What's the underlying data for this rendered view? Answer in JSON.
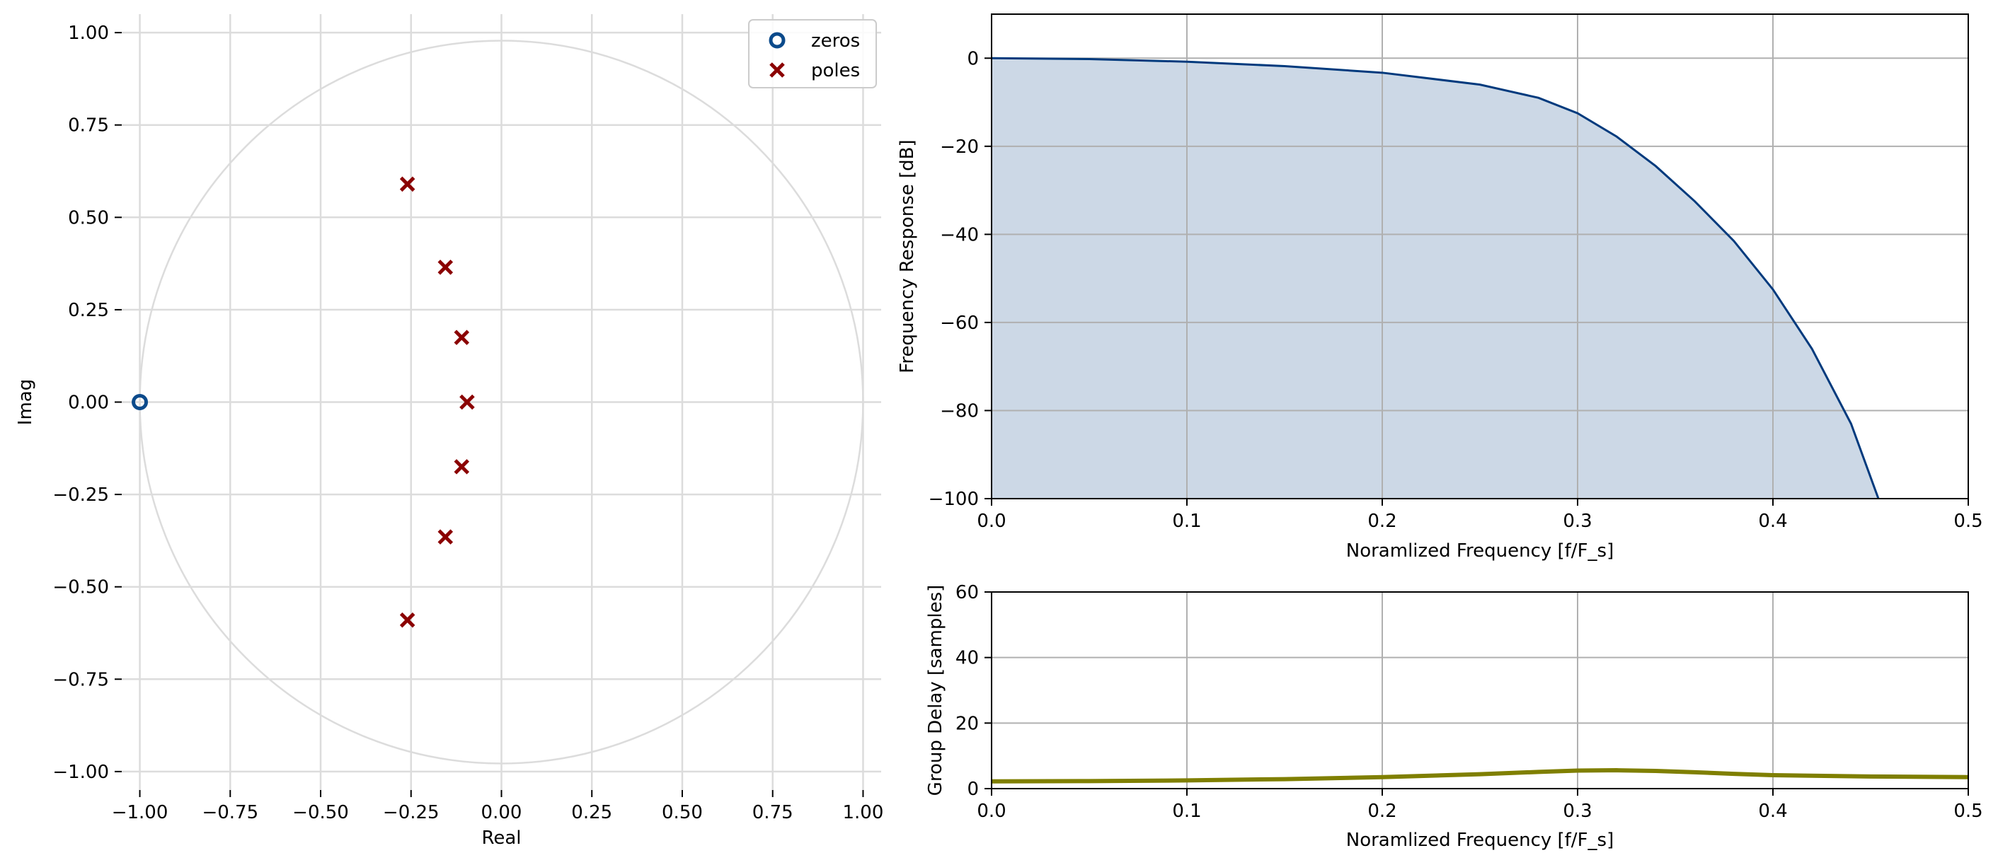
{
  "chart_data": [
    {
      "type": "scatter",
      "xlabel": "Real",
      "ylabel": "Imag",
      "xlim": [
        -1.05,
        1.05
      ],
      "ylim": [
        -1.05,
        1.05
      ],
      "xticks": [
        -1.0,
        -0.75,
        -0.5,
        -0.25,
        0.0,
        0.25,
        0.5,
        0.75,
        1.0
      ],
      "xtick_labels": [
        "−1.00",
        "−0.75",
        "−0.50",
        "−0.25",
        "0.00",
        "0.25",
        "0.50",
        "0.75",
        "1.00"
      ],
      "yticks": [
        1.0,
        0.75,
        0.5,
        0.25,
        0.0,
        -0.25,
        -0.5,
        -0.75,
        -1.0
      ],
      "ytick_labels": [
        "1.00",
        "0.75",
        "0.50",
        "0.25",
        "0.00",
        "−0.25",
        "−0.50",
        "−0.75",
        "−1.00"
      ],
      "grid": true,
      "unit_circle": true,
      "legend_position": "top-right",
      "series": [
        {
          "name": "zeros",
          "marker": "circle",
          "color": "#0b4a8b",
          "x": [
            -1.0
          ],
          "y": [
            0.0
          ]
        },
        {
          "name": "poles",
          "marker": "x",
          "color": "#8b0000",
          "x": [
            -0.26,
            -0.155,
            -0.11,
            -0.095,
            -0.11,
            -0.155,
            -0.26
          ],
          "y": [
            0.59,
            0.365,
            0.175,
            0.0,
            -0.175,
            -0.365,
            -0.59
          ]
        }
      ]
    },
    {
      "type": "area",
      "xlabel": "Noramlized Frequency [f/F_s]",
      "ylabel": "Frequency Response [dB]",
      "xlim": [
        0,
        0.5
      ],
      "ylim": [
        -100,
        10
      ],
      "xticks": [
        0.0,
        0.1,
        0.2,
        0.3,
        0.4,
        0.5
      ],
      "xtick_labels": [
        "0.0",
        "0.1",
        "0.2",
        "0.3",
        "0.4",
        "0.5"
      ],
      "yticks": [
        0,
        -20,
        -40,
        -60,
        -80,
        -100
      ],
      "ytick_labels": [
        "0",
        "−20",
        "−40",
        "−60",
        "−80",
        "−100"
      ],
      "grid": true,
      "line_color": "#003a7d",
      "fill_color": "#ccd8e6",
      "x": [
        0,
        0.05,
        0.1,
        0.15,
        0.2,
        0.25,
        0.28,
        0.3,
        0.32,
        0.34,
        0.36,
        0.38,
        0.4,
        0.42,
        0.44,
        0.454
      ],
      "y": [
        0,
        -0.2,
        -0.8,
        -1.8,
        -3.3,
        -6,
        -9,
        -12.5,
        -17.8,
        -24.5,
        -32.5,
        -41.5,
        -52.5,
        -66,
        -83,
        -100
      ]
    },
    {
      "type": "line",
      "xlabel": "Noramlized Frequency [f/F_s]",
      "ylabel": "Group Delay [samples]",
      "xlim": [
        0,
        0.5
      ],
      "ylim": [
        0,
        60
      ],
      "xticks": [
        0.0,
        0.1,
        0.2,
        0.3,
        0.4,
        0.5
      ],
      "xtick_labels": [
        "0.0",
        "0.1",
        "0.2",
        "0.3",
        "0.4",
        "0.5"
      ],
      "yticks": [
        0,
        20,
        40,
        60
      ],
      "ytick_labels": [
        "0",
        "20",
        "40",
        "60"
      ],
      "grid": true,
      "line_color": "#7f7f00",
      "x": [
        0,
        0.05,
        0.1,
        0.15,
        0.2,
        0.25,
        0.28,
        0.3,
        0.32,
        0.34,
        0.36,
        0.38,
        0.4,
        0.45,
        0.5
      ],
      "y": [
        2.2,
        2.3,
        2.5,
        2.9,
        3.5,
        4.4,
        5.1,
        5.5,
        5.6,
        5.4,
        5.0,
        4.5,
        4.1,
        3.7,
        3.5
      ]
    }
  ]
}
